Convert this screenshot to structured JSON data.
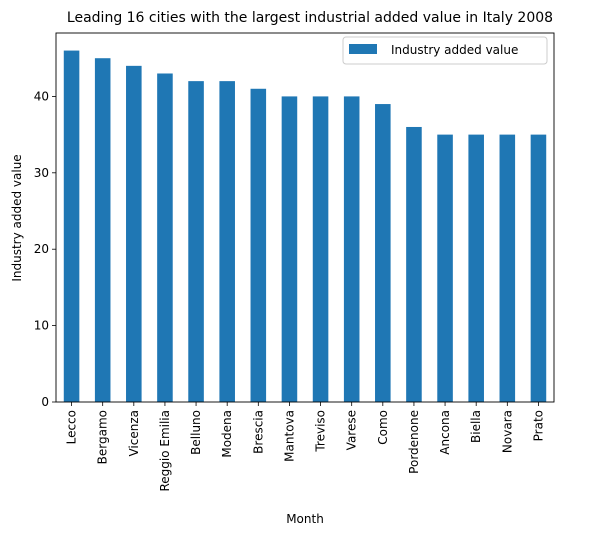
{
  "chart_data": {
    "type": "bar",
    "title": "Leading 16 cities with the largest industrial added value in Italy 2008",
    "xlabel": "Month",
    "ylabel": "Industry added value",
    "categories": [
      "Lecco",
      "Bergamo",
      "Vicenza",
      "Reggio Emilia",
      "Belluno",
      "Modena",
      "Brescia",
      "Mantova",
      "Treviso",
      "Varese",
      "Como",
      "Pordenone",
      "Ancona",
      "Biella",
      "Novara",
      "Prato"
    ],
    "series": [
      {
        "name": "Industry added value",
        "color": "#1f77b4",
        "values": [
          46,
          45,
          44,
          43,
          42,
          42,
          41,
          40,
          40,
          40,
          39,
          36,
          35,
          35,
          35,
          35
        ]
      }
    ],
    "ylim": [
      0,
      48.3
    ],
    "yticks": [
      0,
      10,
      20,
      30,
      40
    ],
    "grid": false,
    "legend": "top-right"
  }
}
